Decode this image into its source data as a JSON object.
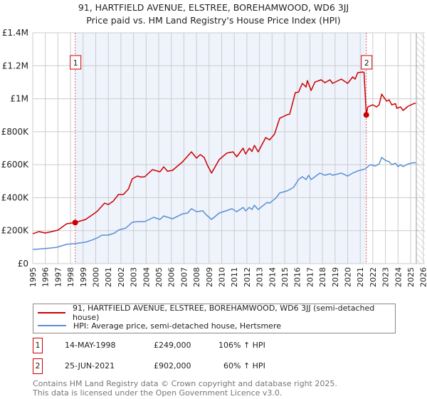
{
  "title": "91, HARTFIELD AVENUE, ELSTREE, BOREHAMWOOD, WD6 3JJ",
  "subtitle": "Price paid vs. HM Land Registry's House Price Index (HPI)",
  "colors": {
    "property": "#cc0000",
    "hpi": "#5b8fd4",
    "shade": "#eef3fc",
    "grid": "#cccccc"
  },
  "chart_data": {
    "type": "line",
    "title": "91, HARTFIELD AVENUE, ELSTREE, BOREHAMWOOD, WD6 3JJ",
    "xlim": [
      1995,
      2026
    ],
    "ylim": [
      0,
      1400000
    ],
    "y_ticks": [
      {
        "v": 0,
        "label": "£0"
      },
      {
        "v": 200000,
        "label": "£200K"
      },
      {
        "v": 400000,
        "label": "£400K"
      },
      {
        "v": 600000,
        "label": "£600K"
      },
      {
        "v": 800000,
        "label": "£800K"
      },
      {
        "v": 1000000,
        "label": "£1M"
      },
      {
        "v": 1200000,
        "label": "£1.2M"
      },
      {
        "v": 1400000,
        "label": "£1.4M"
      }
    ],
    "x_ticks": [
      "1995",
      "1996",
      "1997",
      "1998",
      "1999",
      "2000",
      "2001",
      "2002",
      "2003",
      "2004",
      "2005",
      "2006",
      "2007",
      "2008",
      "2009",
      "2010",
      "2011",
      "2012",
      "2013",
      "2014",
      "2015",
      "2016",
      "2017",
      "2018",
      "2019",
      "2020",
      "2021",
      "2022",
      "2023",
      "2024",
      "2025",
      "2026"
    ],
    "grid": true,
    "series": [
      {
        "name": "91, HARTFIELD AVENUE, ELSTREE, BOREHAMWOOD, WD6 3JJ (semi-detached house)",
        "x": [
          1995,
          1995.5,
          1996,
          1996.5,
          1997,
          1997.7,
          1998.37,
          1999.2,
          2000.1,
          2000.7,
          2001,
          2001.4,
          2001.8,
          2002.2,
          2002.6,
          2002.9,
          2003.3,
          2003.6,
          2003.9,
          2004.5,
          2005.1,
          2005.4,
          2005.7,
          2006.1,
          2006.9,
          2007.6,
          2008,
          2008.3,
          2008.6,
          2008.9,
          2009.2,
          2009.8,
          2010.4,
          2010.9,
          2011.2,
          2011.7,
          2011.9,
          2012.2,
          2012.4,
          2012.6,
          2012.9,
          2013.5,
          2013.8,
          2014.2,
          2014.6,
          2015.2,
          2015.4,
          2015.85,
          2016.1,
          2016.4,
          2016.7,
          2016.8,
          2017.1,
          2017.4,
          2017.9,
          2018.2,
          2018.6,
          2018.8,
          2019.5,
          2020,
          2020.4,
          2020.6,
          2020.8,
          2021.2,
          2021.3,
          2021.48,
          2021.6,
          2022,
          2022.3,
          2022.5,
          2022.7,
          2022.9,
          2023.1,
          2023.3,
          2023.5,
          2023.8,
          2023.9,
          2024.2,
          2024.4,
          2024.8,
          2025.3,
          2025.4
        ],
        "values": [
          181000,
          194000,
          186000,
          194000,
          203000,
          242000,
          249000,
          268000,
          316000,
          367000,
          358000,
          380000,
          419000,
          419000,
          453000,
          514000,
          531000,
          525000,
          527000,
          570000,
          557000,
          587000,
          560000,
          566000,
          618000,
          678000,
          640000,
          661000,
          645000,
          592000,
          549000,
          631000,
          670000,
          678000,
          648000,
          700000,
          665000,
          700000,
          680000,
          717000,
          678000,
          765000,
          750000,
          786000,
          881000,
          903000,
          907000,
          1037000,
          1040000,
          1093000,
          1071000,
          1110000,
          1050000,
          1101000,
          1115000,
          1097000,
          1115000,
          1093000,
          1119000,
          1093000,
          1132000,
          1119000,
          1158000,
          1162000,
          1160000,
          902000,
          950000,
          963000,
          950000,
          963000,
          1028000,
          1006000,
          985000,
          993000,
          963000,
          970000,
          942000,
          950000,
          929000,
          955000,
          972000,
          972000
        ]
      },
      {
        "name": "HPI: Average price, semi-detached house, Hertsmere",
        "x": [
          1995,
          1996,
          1996.9,
          1997.7,
          1998.3,
          1999.2,
          1999.7,
          2000.1,
          2000.5,
          2001,
          2001.5,
          2001.8,
          2002.4,
          2002.9,
          2003.4,
          2003.9,
          2004.6,
          2005.1,
          2005.4,
          2006.1,
          2006.9,
          2007.3,
          2007.6,
          2008,
          2008.5,
          2008.8,
          2009.2,
          2009.8,
          2010.5,
          2010.8,
          2011.2,
          2011.7,
          2011.9,
          2012.2,
          2012.4,
          2012.6,
          2012.9,
          2013.6,
          2013.8,
          2014.3,
          2014.6,
          2015.2,
          2015.7,
          2016.1,
          2016.4,
          2016.7,
          2016.9,
          2017.1,
          2017.8,
          2018.2,
          2018.6,
          2018.8,
          2019.5,
          2020,
          2020.4,
          2020.8,
          2021.2,
          2021.4,
          2021.8,
          2022.2,
          2022.5,
          2022.7,
          2023,
          2023.3,
          2023.5,
          2023.8,
          2024,
          2024.2,
          2024.4,
          2024.8,
          2025.3,
          2025.4
        ],
        "values": [
          86000,
          91000,
          99000,
          117000,
          121000,
          130000,
          143000,
          155000,
          173000,
          173000,
          186000,
          203000,
          216000,
          251000,
          255000,
          255000,
          281000,
          268000,
          289000,
          272000,
          302000,
          307000,
          333000,
          315000,
          320000,
          294000,
          268000,
          307000,
          324000,
          333000,
          315000,
          341000,
          320000,
          341000,
          328000,
          354000,
          328000,
          371000,
          367000,
          397000,
          428000,
          441000,
          462000,
          510000,
          527000,
          510000,
          536000,
          510000,
          549000,
          536000,
          545000,
          536000,
          549000,
          531000,
          549000,
          562000,
          570000,
          575000,
          600000,
          592000,
          605000,
          644000,
          626000,
          618000,
          600000,
          609000,
          588000,
          600000,
          588000,
          605000,
          613000,
          609000
        ]
      }
    ],
    "sales": [
      {
        "id": "1",
        "x": 1998.37,
        "value": 249000,
        "date": "14-MAY-1998",
        "price": "£249,000",
        "hpi": "106% ↑ HPI"
      },
      {
        "id": "2",
        "x": 2021.48,
        "value": 902000,
        "date": "25-JUN-2021",
        "price": "£902,000",
        "hpi": "60% ↑ HPI"
      }
    ],
    "projection_from": 2025.45,
    "legend_placement": "below"
  },
  "legend": {
    "property": "91, HARTFIELD AVENUE, ELSTREE, BOREHAMWOOD, WD6 3JJ (semi-detached house)",
    "hpi": "HPI: Average price, semi-detached house, Hertsmere"
  },
  "footer": {
    "line1": "Contains HM Land Registry data © Crown copyright and database right 2025.",
    "line2": "This data is licensed under the Open Government Licence v3.0."
  }
}
